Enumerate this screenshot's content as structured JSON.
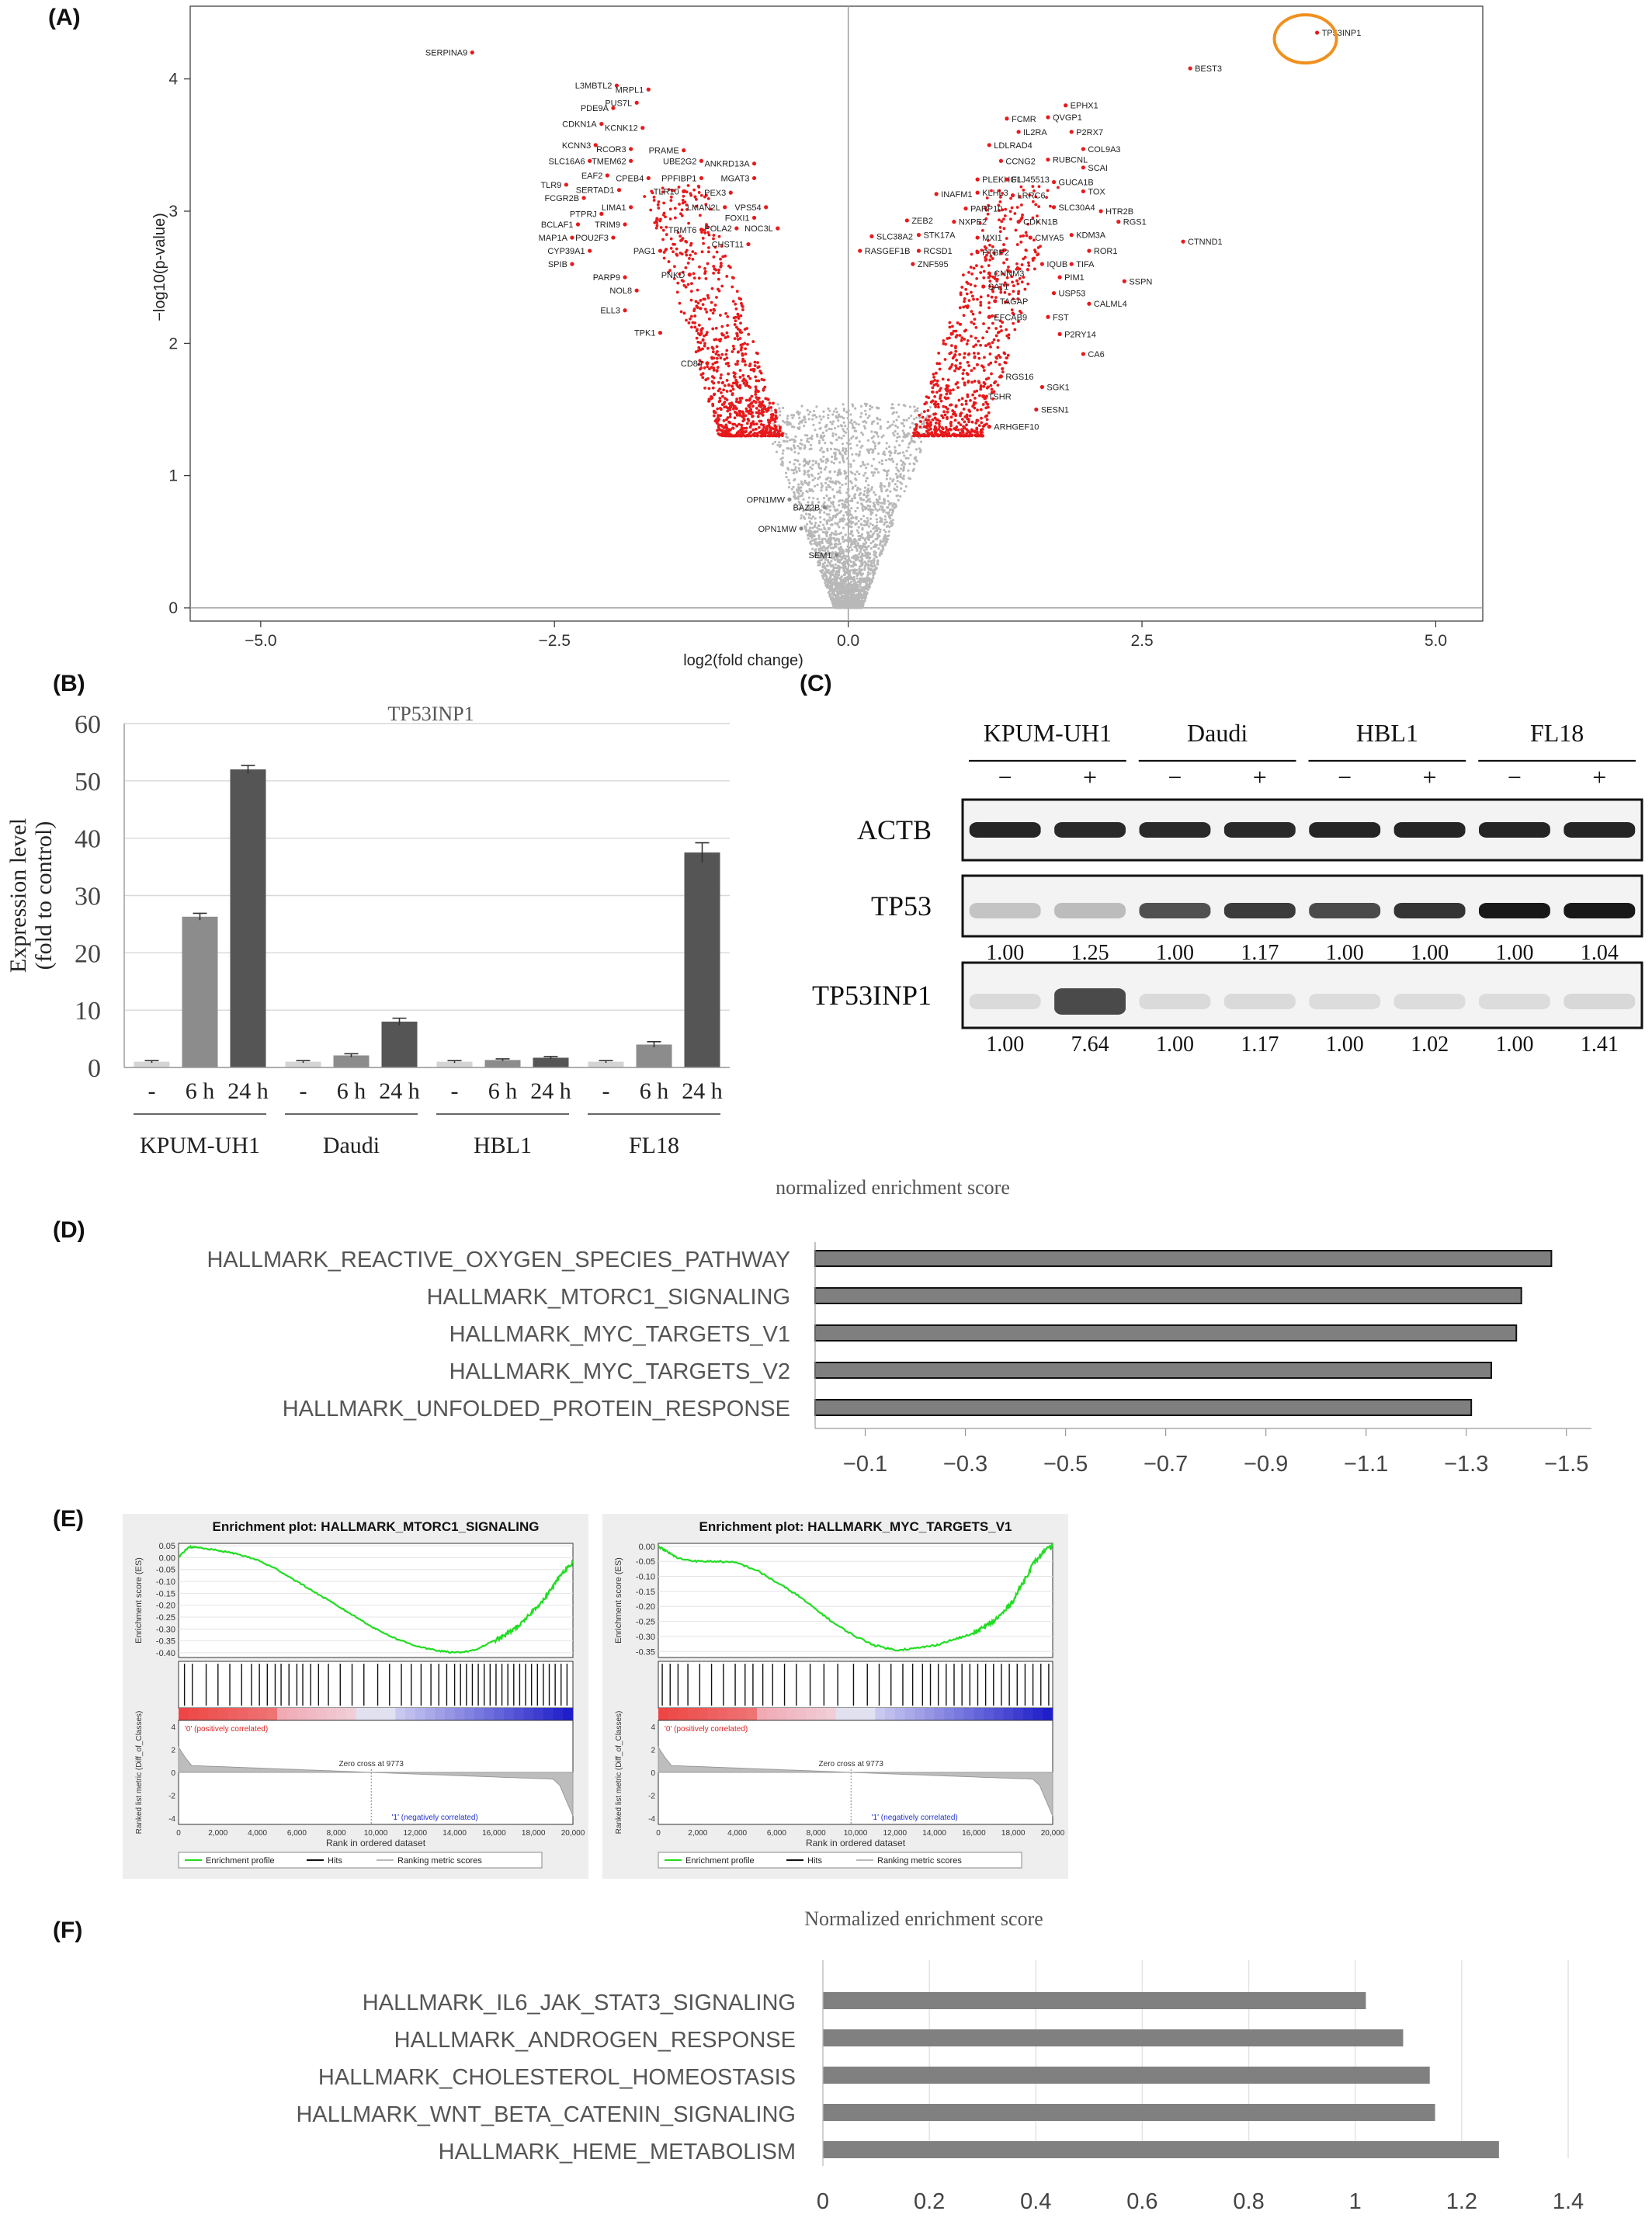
{
  "panels": {
    "a": "(A)",
    "b": "(B)",
    "c": "(C)",
    "d": "(D)",
    "e": "(E)",
    "f": "(F)"
  },
  "colors": {
    "sig": "#e8191b",
    "nonsig": "#b8b8b8",
    "bar_b": [
      "#d4d4d4",
      "#8c8c8c",
      "#555555"
    ],
    "bar_d": "#7f7f7f",
    "bar_f": "#808080",
    "highlight": "#f0901e",
    "es_line": "#22dd22"
  },
  "chart_data": [
    {
      "type": "scatter",
      "id": "volcano",
      "xlabel": "log2(fold change)",
      "ylabel": "−log10(p-value)",
      "xlim": [
        -5.6,
        5.4
      ],
      "ylim": [
        -0.1,
        4.55
      ],
      "xticks": [
        -5.0,
        -2.5,
        0.0,
        2.5,
        5.0
      ],
      "xtick_labels": [
        "−5.0",
        "−2.5",
        "0.0",
        "2.5",
        "5.0"
      ],
      "yticks": [
        0,
        1,
        2,
        3,
        4
      ],
      "ytick_labels": [
        "0",
        "1",
        "2",
        "3",
        "4"
      ],
      "labeled_points": [
        {
          "gene": "SERPINA9",
          "x": -3.2,
          "y": 4.2
        },
        {
          "gene": "TP53INP1",
          "x": 3.99,
          "y": 4.35
        },
        {
          "gene": "BEST3",
          "x": 2.91,
          "y": 4.08
        },
        {
          "gene": "L3MBTL2",
          "x": -1.97,
          "y": 3.95
        },
        {
          "gene": "MRPL1",
          "x": -1.7,
          "y": 3.92
        },
        {
          "gene": "PDE9A",
          "x": -2.0,
          "y": 3.78
        },
        {
          "gene": "PUS7L",
          "x": -1.8,
          "y": 3.82
        },
        {
          "gene": "CDKN1A",
          "x": -2.1,
          "y": 3.66
        },
        {
          "gene": "KCNK12",
          "x": -1.75,
          "y": 3.63
        },
        {
          "gene": "KCNN3",
          "x": -2.15,
          "y": 3.5
        },
        {
          "gene": "RCOR3",
          "x": -1.85,
          "y": 3.47
        },
        {
          "gene": "PRAME",
          "x": -1.4,
          "y": 3.46
        },
        {
          "gene": "SLC16A6",
          "x": -2.2,
          "y": 3.38
        },
        {
          "gene": "TMEM62",
          "x": -1.85,
          "y": 3.38
        },
        {
          "gene": "UBE2G2",
          "x": -1.25,
          "y": 3.38
        },
        {
          "gene": "ANKRD13A",
          "x": -0.8,
          "y": 3.36
        },
        {
          "gene": "EAF2",
          "x": -2.05,
          "y": 3.27
        },
        {
          "gene": "CPEB4",
          "x": -1.7,
          "y": 3.25
        },
        {
          "gene": "PPFIBP1",
          "x": -1.25,
          "y": 3.25
        },
        {
          "gene": "MGAT3",
          "x": -0.8,
          "y": 3.25
        },
        {
          "gene": "TLR9",
          "x": -2.4,
          "y": 3.2
        },
        {
          "gene": "SERTAD1",
          "x": -1.95,
          "y": 3.16
        },
        {
          "gene": "TLR10",
          "x": -1.4,
          "y": 3.15
        },
        {
          "gene": "PEX3",
          "x": -1.0,
          "y": 3.14
        },
        {
          "gene": "FCGR2B",
          "x": -2.25,
          "y": 3.1
        },
        {
          "gene": "LIMA1",
          "x": -1.85,
          "y": 3.03
        },
        {
          "gene": "LMAN2L",
          "x": -1.05,
          "y": 3.03
        },
        {
          "gene": "VPS54",
          "x": -0.7,
          "y": 3.03
        },
        {
          "gene": "PTPRJ",
          "x": -2.1,
          "y": 2.98
        },
        {
          "gene": "FOXI1",
          "x": -0.8,
          "y": 2.95
        },
        {
          "gene": "BCLAF1",
          "x": -2.3,
          "y": 2.9
        },
        {
          "gene": "TRIM9",
          "x": -1.9,
          "y": 2.9
        },
        {
          "gene": "TRMT6",
          "x": -1.25,
          "y": 2.86
        },
        {
          "gene": "POLA2",
          "x": -0.95,
          "y": 2.87
        },
        {
          "gene": "NOC3L",
          "x": -0.6,
          "y": 2.87
        },
        {
          "gene": "MAP1A",
          "x": -2.35,
          "y": 2.8
        },
        {
          "gene": "POU2F3",
          "x": -2.0,
          "y": 2.8
        },
        {
          "gene": "CHST11",
          "x": -0.85,
          "y": 2.75
        },
        {
          "gene": "CYP39A1",
          "x": -2.2,
          "y": 2.7
        },
        {
          "gene": "PAG1",
          "x": -1.6,
          "y": 2.7
        },
        {
          "gene": "SPIB",
          "x": -2.35,
          "y": 2.6
        },
        {
          "gene": "PARP9",
          "x": -1.9,
          "y": 2.5
        },
        {
          "gene": "PNKD",
          "x": -1.35,
          "y": 2.52
        },
        {
          "gene": "NOL8",
          "x": -1.8,
          "y": 2.4
        },
        {
          "gene": "ELL3",
          "x": -1.9,
          "y": 2.25
        },
        {
          "gene": "TPK1",
          "x": -1.6,
          "y": 2.08
        },
        {
          "gene": "CD84",
          "x": -1.2,
          "y": 1.85
        },
        {
          "gene": "OPN1MW",
          "x": -0.5,
          "y": 0.82
        },
        {
          "gene": "BAZ2B",
          "x": -0.2,
          "y": 0.76
        },
        {
          "gene": "OPN1MW",
          "x": -0.4,
          "y": 0.6
        },
        {
          "gene": "SEM1",
          "x": -0.1,
          "y": 0.4
        },
        {
          "gene": "EPHX1",
          "x": 1.85,
          "y": 3.8
        },
        {
          "gene": "FCMR",
          "x": 1.35,
          "y": 3.7
        },
        {
          "gene": "QVGP1",
          "x": 1.7,
          "y": 3.71
        },
        {
          "gene": "IL2RA",
          "x": 1.45,
          "y": 3.6
        },
        {
          "gene": "P2RX7",
          "x": 1.9,
          "y": 3.6
        },
        {
          "gene": "LDLRAD4",
          "x": 1.2,
          "y": 3.5
        },
        {
          "gene": "COL9A3",
          "x": 2.0,
          "y": 3.47
        },
        {
          "gene": "CCNG2",
          "x": 1.3,
          "y": 3.38
        },
        {
          "gene": "RUBCNL",
          "x": 1.7,
          "y": 3.39
        },
        {
          "gene": "SCAI",
          "x": 2.0,
          "y": 3.33
        },
        {
          "gene": "PLEKHG1",
          "x": 1.1,
          "y": 3.24
        },
        {
          "gene": "FLJ45513",
          "x": 1.35,
          "y": 3.24
        },
        {
          "gene": "GUCA1B",
          "x": 1.75,
          "y": 3.22
        },
        {
          "gene": "INAFM1",
          "x": 0.75,
          "y": 3.13
        },
        {
          "gene": "KLHL3",
          "x": 1.1,
          "y": 3.14
        },
        {
          "gene": "LRRC6",
          "x": 1.4,
          "y": 3.12
        },
        {
          "gene": "TOX",
          "x": 2.0,
          "y": 3.15
        },
        {
          "gene": "SLC30A4",
          "x": 1.75,
          "y": 3.03
        },
        {
          "gene": "HTR2B",
          "x": 2.15,
          "y": 3.0
        },
        {
          "gene": "PARP10",
          "x": 1.0,
          "y": 3.02
        },
        {
          "gene": "ZEB2",
          "x": 0.5,
          "y": 2.93
        },
        {
          "gene": "NXPE2",
          "x": 0.9,
          "y": 2.92
        },
        {
          "gene": "CDKN1B",
          "x": 1.45,
          "y": 2.92
        },
        {
          "gene": "RGS1",
          "x": 2.3,
          "y": 2.92
        },
        {
          "gene": "SLC38A2",
          "x": 0.2,
          "y": 2.81
        },
        {
          "gene": "STK17A",
          "x": 0.6,
          "y": 2.82
        },
        {
          "gene": "MXI1",
          "x": 1.1,
          "y": 2.8
        },
        {
          "gene": "CMYA5",
          "x": 1.55,
          "y": 2.8
        },
        {
          "gene": "KDM3A",
          "x": 1.9,
          "y": 2.82
        },
        {
          "gene": "CTNND1",
          "x": 2.85,
          "y": 2.77
        },
        {
          "gene": "RASGEF1B",
          "x": 0.1,
          "y": 2.7
        },
        {
          "gene": "RCSD1",
          "x": 0.6,
          "y": 2.7
        },
        {
          "gene": "PTBP2",
          "x": 1.1,
          "y": 2.69
        },
        {
          "gene": "ROR1",
          "x": 2.05,
          "y": 2.7
        },
        {
          "gene": "ZNF595",
          "x": 0.55,
          "y": 2.6
        },
        {
          "gene": "IQUB",
          "x": 1.65,
          "y": 2.6
        },
        {
          "gene": "TIFA",
          "x": 1.9,
          "y": 2.6
        },
        {
          "gene": "CNNM3",
          "x": 1.2,
          "y": 2.53
        },
        {
          "gene": "PIM1",
          "x": 1.8,
          "y": 2.5
        },
        {
          "gene": "SSPN",
          "x": 2.35,
          "y": 2.47
        },
        {
          "gene": "SAT1",
          "x": 1.15,
          "y": 2.43
        },
        {
          "gene": "USP53",
          "x": 1.75,
          "y": 2.38
        },
        {
          "gene": "TAGAP",
          "x": 1.25,
          "y": 2.32
        },
        {
          "gene": "CALML4",
          "x": 2.05,
          "y": 2.3
        },
        {
          "gene": "EFCAB9",
          "x": 1.2,
          "y": 2.2
        },
        {
          "gene": "FST",
          "x": 1.7,
          "y": 2.2
        },
        {
          "gene": "P2RY14",
          "x": 1.8,
          "y": 2.07
        },
        {
          "gene": "CA6",
          "x": 2.0,
          "y": 1.92
        },
        {
          "gene": "RGS16",
          "x": 1.3,
          "y": 1.75
        },
        {
          "gene": "SGK1",
          "x": 1.65,
          "y": 1.67
        },
        {
          "gene": "TSHR",
          "x": 1.15,
          "y": 1.6
        },
        {
          "gene": "SESN1",
          "x": 1.6,
          "y": 1.5
        },
        {
          "gene": "ARHGEF10",
          "x": 1.2,
          "y": 1.37
        }
      ]
    },
    {
      "type": "bar",
      "id": "tp53inp1_expression",
      "title": "TP53INP1",
      "ylabel": "Expression level\n(fold to control)",
      "ylim": [
        0,
        60
      ],
      "yticks": [
        0,
        10,
        20,
        30,
        40,
        50,
        60
      ],
      "groups": [
        "KPUM-UH1",
        "Daudi",
        "HBL1",
        "FL18"
      ],
      "categories": [
        "-",
        "6 h",
        "24 h"
      ],
      "values": [
        [
          1.0,
          26.3,
          52.0
        ],
        [
          1.0,
          2.1,
          8.0
        ],
        [
          1.0,
          1.3,
          1.7
        ],
        [
          1.0,
          4.0,
          37.5
        ]
      ],
      "errors": [
        [
          0.2,
          0.6,
          0.7
        ],
        [
          0.2,
          0.3,
          0.6
        ],
        [
          0.2,
          0.2,
          0.2
        ],
        [
          0.2,
          0.5,
          1.7
        ]
      ]
    },
    {
      "type": "bar",
      "id": "nes_d",
      "orientation": "horizontal",
      "title": "normalized enrichment score",
      "categories": [
        "HALLMARK_REACTIVE_OXYGEN_SPECIES_PATHWAY",
        "HALLMARK_MTORC1_SIGNALING",
        "HALLMARK_MYC_TARGETS_V1",
        "HALLMARK_MYC_TARGETS_V2",
        "HALLMARK_UNFOLDED_PROTEIN_RESPONSE"
      ],
      "values": [
        -1.47,
        -1.41,
        -1.4,
        -1.35,
        -1.31
      ],
      "xlim": [
        0.0,
        -1.55
      ],
      "xticks": [
        -0.1,
        -0.3,
        -0.5,
        -0.7,
        -0.9,
        -1.1,
        -1.3,
        -1.5
      ],
      "xtick_labels": [
        "−0.1",
        "−0.3",
        "−0.5",
        "−0.7",
        "−0.9",
        "−1.1",
        "−1.3",
        "−1.5"
      ]
    },
    {
      "type": "line",
      "id": "gsea_mtorc1",
      "title": "Enrichment plot: HALLMARK_MTORC1_SIGNALING",
      "ylabel": "Enrichment score (ES)",
      "xlabel": "Rank in ordered dataset",
      "ylim": [
        -0.42,
        0.06
      ],
      "yticks": [
        0.05,
        0.0,
        -0.05,
        -0.1,
        -0.15,
        -0.2,
        -0.25,
        -0.3,
        -0.35,
        -0.4
      ],
      "ytick_labels": [
        "0.05",
        "0.00",
        "-0.05",
        "-0.10",
        "-0.15",
        "-0.20",
        "-0.25",
        "-0.30",
        "-0.35",
        "-0.40"
      ],
      "x": [
        0,
        500,
        1000,
        2000,
        3000,
        4000,
        5000,
        6000,
        7000,
        8000,
        9000,
        10000,
        11000,
        12000,
        13000,
        14000,
        15000,
        16000,
        16500,
        17000,
        17500,
        18000,
        18500,
        19000,
        19500,
        20000
      ],
      "y": [
        0.0,
        0.045,
        0.042,
        0.03,
        0.015,
        -0.01,
        -0.05,
        -0.1,
        -0.15,
        -0.2,
        -0.25,
        -0.3,
        -0.34,
        -0.37,
        -0.39,
        -0.4,
        -0.39,
        -0.35,
        -0.33,
        -0.3,
        -0.27,
        -0.22,
        -0.18,
        -0.12,
        -0.06,
        -0.02
      ],
      "xticks": [
        0,
        2000,
        4000,
        6000,
        8000,
        10000,
        12000,
        14000,
        16000,
        18000,
        20000
      ],
      "xtick_labels": [
        "0",
        "2,000",
        "4,000",
        "6,000",
        "8,000",
        "10,000",
        "12,000",
        "14,000",
        "16,000",
        "18,000",
        "20,000"
      ],
      "metric_label": "Ranked list metric (Diff_of_Classes)",
      "metric_ticks": [
        "4",
        "2",
        "0",
        "-2",
        "-4"
      ],
      "pos_label": "'0' (positively correlated)",
      "neg_label": "'1' (negatively correlated)",
      "zero_cross": "Zero cross at 9773",
      "legend": [
        "Enrichment profile",
        "Hits",
        "Ranking metric scores"
      ],
      "hits": [
        300,
        700,
        1400,
        2000,
        2600,
        3200,
        3700,
        4100,
        4500,
        4900,
        5200,
        5600,
        6000,
        6300,
        6700,
        7100,
        7600,
        8200,
        8800,
        9400,
        10100,
        10700,
        11300,
        11800,
        12300,
        12800,
        13200,
        13600,
        14000,
        14300,
        14600,
        14900,
        15200,
        15500,
        15800,
        16100,
        16400,
        16700,
        17000,
        17300,
        17600,
        17900,
        18200,
        18500,
        18800,
        19100,
        19400,
        19700
      ]
    },
    {
      "type": "line",
      "id": "gsea_myc",
      "title": "Enrichment plot: HALLMARK_MYC_TARGETS_V1",
      "ylabel": "Enrichment score (ES)",
      "xlabel": "Rank in ordered dataset",
      "ylim": [
        -0.37,
        0.01
      ],
      "yticks": [
        0.0,
        -0.05,
        -0.1,
        -0.15,
        -0.2,
        -0.25,
        -0.3,
        -0.35
      ],
      "ytick_labels": [
        "0.00",
        "-0.05",
        "-0.10",
        "-0.15",
        "-0.20",
        "-0.25",
        "-0.30",
        "-0.35"
      ],
      "x": [
        0,
        500,
        1000,
        2000,
        3000,
        4000,
        5000,
        6000,
        7000,
        8000,
        9000,
        10000,
        11000,
        12000,
        13000,
        14000,
        15000,
        16000,
        16500,
        17000,
        17500,
        18000,
        18500,
        19000,
        19500,
        20000
      ],
      "y": [
        0.0,
        -0.02,
        -0.04,
        -0.05,
        -0.05,
        -0.055,
        -0.08,
        -0.12,
        -0.16,
        -0.21,
        -0.26,
        -0.3,
        -0.33,
        -0.345,
        -0.34,
        -0.33,
        -0.31,
        -0.29,
        -0.27,
        -0.25,
        -0.22,
        -0.18,
        -0.12,
        -0.06,
        -0.02,
        0.0
      ],
      "xticks": [
        0,
        2000,
        4000,
        6000,
        8000,
        10000,
        12000,
        14000,
        16000,
        18000,
        20000
      ],
      "xtick_labels": [
        "0",
        "2,000",
        "4,000",
        "6,000",
        "8,000",
        "10,000",
        "12,000",
        "14,000",
        "16,000",
        "18,000",
        "20,000"
      ],
      "metric_label": "Ranked list metric (Diff_of_Classes)",
      "metric_ticks": [
        "4",
        "2",
        "0",
        "-2",
        "-4"
      ],
      "pos_label": "'0' (positively correlated)",
      "neg_label": "'1' (negatively correlated)",
      "zero_cross": "Zero cross at 9773",
      "legend": [
        "Enrichment profile",
        "Hits",
        "Ranking metric scores"
      ],
      "hits": [
        200,
        600,
        1000,
        1500,
        2100,
        2700,
        3300,
        3900,
        4400,
        4800,
        5300,
        5800,
        6400,
        7000,
        7700,
        8400,
        9100,
        9900,
        10600,
        11200,
        11800,
        12400,
        12900,
        13400,
        13800,
        14200,
        14600,
        15000,
        15400,
        15800,
        16200,
        16600,
        17000,
        17400,
        17800,
        18200,
        18600,
        19000,
        19400,
        19800
      ]
    },
    {
      "type": "bar",
      "id": "nes_f",
      "orientation": "horizontal",
      "title": "Normalized enrichment score",
      "categories": [
        "HALLMARK_IL6_JAK_STAT3_SIGNALING",
        "HALLMARK_ANDROGEN_RESPONSE",
        "HALLMARK_CHOLESTEROL_HOMEOSTASIS",
        "HALLMARK_WNT_BETA_CATENIN_SIGNALING",
        "HALLMARK_HEME_METABOLISM"
      ],
      "values": [
        1.02,
        1.09,
        1.14,
        1.15,
        1.27
      ],
      "xlim": [
        0,
        1.4
      ],
      "xticks": [
        0,
        0.2,
        0.4,
        0.6,
        0.8,
        1.0,
        1.2,
        1.4
      ],
      "xtick_labels": [
        "0",
        "0.2",
        "0.4",
        "0.6",
        "0.8",
        "1",
        "1.2",
        "1.4"
      ]
    }
  ],
  "western": {
    "groups": [
      "KPUM-UH1",
      "Daudi",
      "HBL1",
      "FL18"
    ],
    "lane_signs": [
      "−",
      "+",
      "−",
      "+",
      "−",
      "+",
      "−",
      "+"
    ],
    "rows": [
      {
        "label": "ACTB",
        "intensity": [
          0.92,
          0.9,
          0.9,
          0.9,
          0.92,
          0.92,
          0.92,
          0.92
        ]
      },
      {
        "label": "TP53",
        "intensity": [
          0.18,
          0.22,
          0.72,
          0.82,
          0.75,
          0.85,
          0.98,
          0.98
        ],
        "quant": [
          "1.00",
          "1.25",
          "1.00",
          "1.17",
          "1.00",
          "1.00",
          "1.00",
          "1.04"
        ]
      },
      {
        "label": "TP53INP1",
        "intensity": [
          0.08,
          0.75,
          0.08,
          0.08,
          0.07,
          0.07,
          0.07,
          0.09
        ],
        "quant": [
          "1.00",
          "7.64",
          "1.00",
          "1.17",
          "1.00",
          "1.02",
          "1.00",
          "1.41"
        ]
      }
    ]
  }
}
